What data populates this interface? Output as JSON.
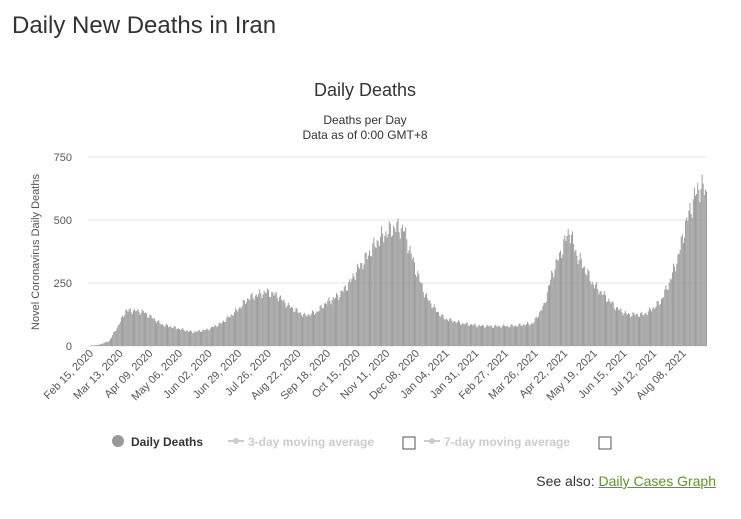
{
  "page": {
    "heading": "Daily New Deaths in Iran",
    "see_also_label": "See also:",
    "see_also_link": "Daily Cases Graph"
  },
  "colors": {
    "bar": "#999999",
    "grid": "#e6e6e6",
    "link": "#5a9a1a"
  },
  "chart_data": {
    "type": "bar",
    "title": "Daily Deaths",
    "subtitle_lines": [
      "Deaths per Day",
      "Data as of 0:00 GMT+8"
    ],
    "ylabel": "Novel Coronavirus Daily Deaths",
    "ylim": [
      0,
      750
    ],
    "yticks": [
      0,
      250,
      500,
      750
    ],
    "x_start": "Feb 15, 2020",
    "x_end": "Aug 31, 2021",
    "xtick_labels": [
      "Feb 15, 2020",
      "Mar 13, 2020",
      "Apr 09, 2020",
      "May 06, 2020",
      "Jun 02, 2020",
      "Jun 29, 2020",
      "Jul 26, 2020",
      "Aug 22, 2020",
      "Sep 18, 2020",
      "Oct 15, 2020",
      "Nov 11, 2020",
      "Dec 08, 2020",
      "Jan 04, 2021",
      "Jan 31, 2021",
      "Feb 27, 2021",
      "Mar 26, 2021",
      "Apr 22, 2021",
      "May 19, 2021",
      "Jun 15, 2021",
      "Jul 12, 2021",
      "Aug 08, 2021"
    ],
    "grid": true,
    "legend_position": "bottom",
    "series": [
      {
        "name": "Daily Deaths",
        "color": "#999999",
        "keypoints": [
          [
            "Feb 15, 2020",
            0
          ],
          [
            "Feb 25, 2020",
            5
          ],
          [
            "Mar 05, 2020",
            20
          ],
          [
            "Mar 13, 2020",
            80
          ],
          [
            "Mar 20, 2020",
            140
          ],
          [
            "Mar 28, 2020",
            140
          ],
          [
            "Apr 05, 2020",
            135
          ],
          [
            "Apr 12, 2020",
            115
          ],
          [
            "Apr 22, 2020",
            85
          ],
          [
            "May 06, 2020",
            70
          ],
          [
            "May 20, 2020",
            55
          ],
          [
            "Jun 02, 2020",
            65
          ],
          [
            "Jun 15, 2020",
            90
          ],
          [
            "Jun 29, 2020",
            140
          ],
          [
            "Jul 10, 2020",
            190
          ],
          [
            "Jul 26, 2020",
            215
          ],
          [
            "Aug 05, 2020",
            200
          ],
          [
            "Aug 15, 2020",
            160
          ],
          [
            "Aug 30, 2020",
            120
          ],
          [
            "Sep 10, 2020",
            135
          ],
          [
            "Sep 18, 2020",
            170
          ],
          [
            "Sep 30, 2020",
            200
          ],
          [
            "Oct 10, 2020",
            250
          ],
          [
            "Oct 15, 2020",
            290
          ],
          [
            "Oct 25, 2020",
            350
          ],
          [
            "Nov 05, 2020",
            420
          ],
          [
            "Nov 11, 2020",
            445
          ],
          [
            "Nov 20, 2020",
            470
          ],
          [
            "Nov 28, 2020",
            465
          ],
          [
            "Dec 08, 2020",
            320
          ],
          [
            "Dec 18, 2020",
            200
          ],
          [
            "Dec 28, 2020",
            140
          ],
          [
            "Jan 04, 2021",
            110
          ],
          [
            "Jan 20, 2021",
            90
          ],
          [
            "Feb 05, 2021",
            80
          ],
          [
            "Feb 20, 2021",
            78
          ],
          [
            "Mar 10, 2021",
            80
          ],
          [
            "Mar 26, 2021",
            90
          ],
          [
            "Apr 05, 2021",
            160
          ],
          [
            "Apr 12, 2021",
            280
          ],
          [
            "Apr 22, 2021",
            390
          ],
          [
            "Apr 28, 2021",
            460
          ],
          [
            "May 05, 2021",
            360
          ],
          [
            "May 12, 2021",
            310
          ],
          [
            "May 19, 2021",
            250
          ],
          [
            "May 30, 2021",
            200
          ],
          [
            "Jun 10, 2021",
            150
          ],
          [
            "Jun 20, 2021",
            125
          ],
          [
            "Jul 05, 2021",
            125
          ],
          [
            "Jul 12, 2021",
            145
          ],
          [
            "Jul 20, 2021",
            175
          ],
          [
            "Jul 28, 2021",
            250
          ],
          [
            "Aug 05, 2021",
            350
          ],
          [
            "Aug 12, 2021",
            480
          ],
          [
            "Aug 20, 2021",
            590
          ],
          [
            "Aug 26, 2021",
            640
          ],
          [
            "Aug 31, 2021",
            600
          ]
        ]
      }
    ],
    "legend": [
      {
        "name": "Daily Deaths",
        "active": true
      },
      {
        "name": "3-day moving average",
        "active": false
      },
      {
        "name": "7-day moving average",
        "active": false
      }
    ]
  }
}
